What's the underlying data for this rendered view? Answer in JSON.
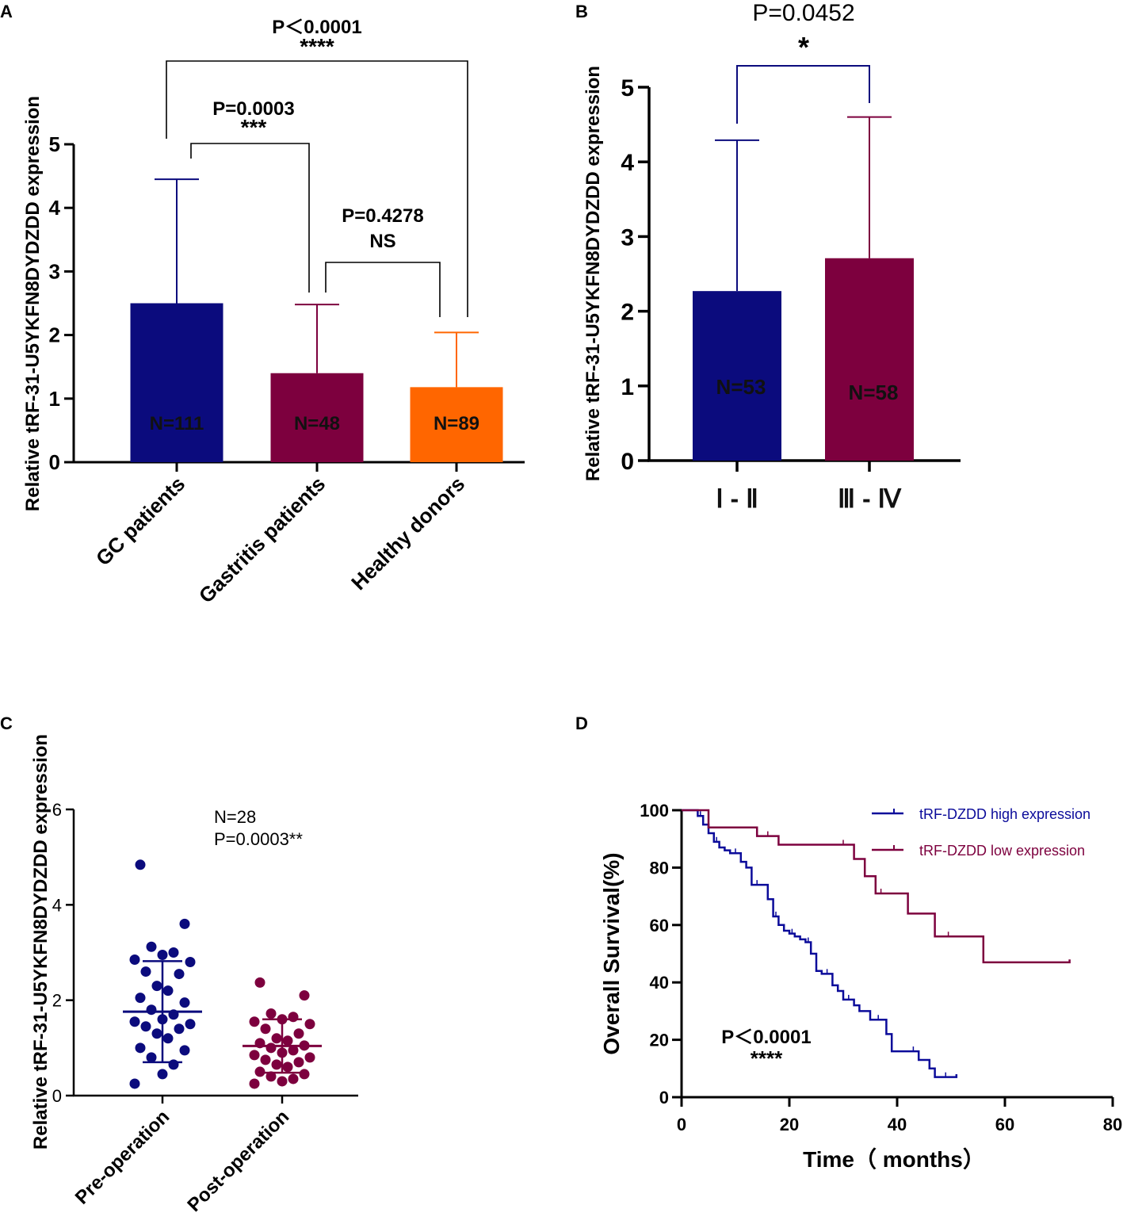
{
  "chart_data": [
    {
      "panel": "A",
      "type": "bar",
      "categories": [
        "GC patients",
        "Gastritis patients",
        "Healthy donors"
      ],
      "values": [
        2.5,
        1.4,
        1.18
      ],
      "error_upper": [
        4.45,
        2.48,
        2.04
      ],
      "n_labels": [
        "N=111",
        "N=48",
        "N=89"
      ],
      "colors": [
        "#0b0b7d",
        "#7d003e",
        "#ff6600"
      ],
      "ylabel": "Relative tRF-31-U5YKFN8DYDZDD expression",
      "xlabel": "",
      "ylim": [
        0,
        5
      ],
      "yticks": [
        "0",
        "1",
        "2",
        "3",
        "4",
        "5"
      ],
      "comparisons": [
        {
          "groups": [
            0,
            2
          ],
          "p": "P＜0.0001",
          "stars": "****"
        },
        {
          "groups": [
            0,
            1
          ],
          "p": "P=0.0003",
          "stars": "***"
        },
        {
          "groups": [
            1,
            2
          ],
          "p": "P=0.4278",
          "stars": "NS"
        }
      ]
    },
    {
      "panel": "B",
      "type": "bar",
      "categories": [
        "Ⅰ - Ⅱ",
        "Ⅲ - Ⅳ"
      ],
      "values": [
        2.27,
        2.71
      ],
      "error_upper": [
        4.29,
        4.6
      ],
      "n_labels": [
        "N=53",
        "N=58"
      ],
      "colors": [
        "#0b0b7d",
        "#7d003e"
      ],
      "ylabel": "Relative tRF-31-U5YKFN8DYDZDD expression",
      "xlabel": "",
      "ylim": [
        0,
        5
      ],
      "yticks": [
        "0",
        "1",
        "2",
        "3",
        "4",
        "5"
      ],
      "comparisons": [
        {
          "groups": [
            0,
            1
          ],
          "p": "P=0.0452",
          "stars": "*"
        }
      ]
    },
    {
      "panel": "C",
      "type": "scatter",
      "categories": [
        "Pre-operation",
        "Post-operation"
      ],
      "series": [
        {
          "name": "Pre-operation",
          "color": "#0b0b7d",
          "mean": 1.76,
          "sd_low": 0.7,
          "sd_high": 2.82,
          "values": [
            4.84,
            3.6,
            3.12,
            3.0,
            2.95,
            2.85,
            2.8,
            2.6,
            2.55,
            2.3,
            2.2,
            2.05,
            1.95,
            1.8,
            1.7,
            1.6,
            1.55,
            1.5,
            1.45,
            1.4,
            1.3,
            1.2,
            1.0,
            0.95,
            0.8,
            0.65,
            0.45,
            0.25
          ]
        },
        {
          "name": "Post-operation",
          "color": "#7d003e",
          "mean": 1.04,
          "sd_low": 0.48,
          "sd_high": 1.6,
          "values": [
            2.37,
            2.1,
            1.72,
            1.65,
            1.6,
            1.55,
            1.5,
            1.4,
            1.3,
            1.2,
            1.15,
            1.1,
            1.05,
            1.0,
            0.95,
            0.9,
            0.85,
            0.8,
            0.75,
            0.7,
            0.65,
            0.6,
            0.5,
            0.45,
            0.4,
            0.35,
            0.3,
            0.25
          ]
        }
      ],
      "ylabel": "Relative tRF-31-U5YKFN8DYDZDD expression",
      "ylim": [
        0,
        6
      ],
      "yticks": [
        "0",
        "2",
        "4",
        "6"
      ],
      "annotation": [
        "N=28",
        "P=0.0003**"
      ]
    },
    {
      "panel": "D",
      "type": "line",
      "xlabel": "Time（ months）",
      "ylabel": "Overall Survival(%)",
      "xlim": [
        0,
        80
      ],
      "ylim": [
        0,
        100
      ],
      "xticks": [
        "0",
        "20",
        "40",
        "60",
        "80"
      ],
      "yticks": [
        "0",
        "20",
        "40",
        "60",
        "80",
        "100"
      ],
      "annotation": [
        "P＜0.0001",
        "****"
      ],
      "series": [
        {
          "name": "tRF-DZDD high expression",
          "color": "#0b0b9a",
          "x": [
            0,
            2,
            3,
            4,
            5,
            6,
            7,
            8,
            9,
            11,
            12,
            13,
            15,
            16,
            17,
            18,
            19,
            20,
            21,
            22,
            23,
            24,
            25,
            26,
            28,
            29,
            30,
            32,
            33,
            35,
            38,
            39,
            42,
            44,
            46,
            47,
            51
          ],
          "y": [
            100,
            100,
            98,
            95,
            92,
            89,
            87,
            86,
            85,
            82,
            80,
            74,
            74,
            69,
            63,
            60,
            58,
            57,
            56,
            55,
            54,
            50,
            44,
            43,
            39,
            37,
            34,
            32,
            30,
            27,
            22,
            16,
            16,
            13,
            10,
            7,
            8
          ]
        },
        {
          "name": "tRF-DZDD low expression",
          "color": "#7d003e",
          "x": [
            0,
            5,
            14,
            18,
            24,
            28,
            32,
            34,
            36,
            38,
            42,
            47,
            52,
            56,
            72
          ],
          "y": [
            100,
            94,
            91,
            88,
            88,
            88,
            83,
            77,
            71,
            71,
            64,
            56,
            56,
            47,
            48
          ]
        }
      ]
    }
  ],
  "panel_letters": [
    "A",
    "B",
    "C",
    "D"
  ]
}
